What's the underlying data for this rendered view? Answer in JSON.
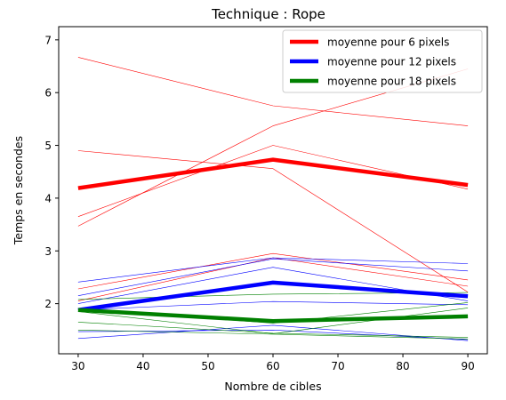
{
  "chart_data": {
    "type": "line",
    "title": "Technique : Rope",
    "xlabel": "Nombre de cibles",
    "ylabel": "Temps en secondes",
    "xlim": [
      27,
      93
    ],
    "ylim": [
      1.05,
      7.25
    ],
    "xticks": [
      30,
      40,
      50,
      60,
      70,
      80,
      90
    ],
    "yticks": [
      2,
      3,
      4,
      5,
      6,
      7
    ],
    "x": [
      30,
      60,
      90
    ],
    "grid": false,
    "legend_position": "top-right",
    "series": [
      {
        "name": "moyenne pour 6 pixels",
        "color": "#ff0000",
        "emphasis": "mean",
        "values": [
          4.19,
          4.73,
          4.25
        ]
      },
      {
        "name": "moyenne pour 12 pixels",
        "color": "#0000ff",
        "emphasis": "mean",
        "values": [
          1.88,
          2.4,
          2.14
        ]
      },
      {
        "name": "moyenne pour 18 pixels",
        "color": "#008000",
        "emphasis": "mean",
        "values": [
          1.88,
          1.67,
          1.76
        ]
      },
      {
        "color": "#ff0000",
        "values": [
          6.67,
          5.75,
          5.37
        ]
      },
      {
        "color": "#ff0000",
        "values": [
          4.9,
          4.56,
          2.22
        ]
      },
      {
        "color": "#ff0000",
        "values": [
          3.65,
          5.0,
          4.17
        ]
      },
      {
        "color": "#ff0000",
        "values": [
          3.47,
          5.37,
          6.45
        ]
      },
      {
        "color": "#ff0000",
        "values": [
          2.28,
          2.95,
          2.45
        ]
      },
      {
        "color": "#ff0000",
        "values": [
          2.05,
          2.87,
          2.33
        ]
      },
      {
        "color": "#0000ff",
        "values": [
          2.41,
          2.87,
          2.76
        ]
      },
      {
        "color": "#0000ff",
        "values": [
          2.15,
          2.85,
          2.62
        ]
      },
      {
        "color": "#0000ff",
        "values": [
          2.0,
          2.69,
          2.05
        ]
      },
      {
        "color": "#0000ff",
        "values": [
          1.88,
          2.04,
          1.98
        ]
      },
      {
        "color": "#0000ff",
        "values": [
          1.47,
          1.5,
          1.32
        ]
      },
      {
        "color": "#0000ff",
        "values": [
          1.34,
          1.59,
          1.3
        ]
      },
      {
        "color": "#008000",
        "values": [
          2.08,
          2.18,
          2.21
        ]
      },
      {
        "color": "#008000",
        "values": [
          1.9,
          1.63,
          2.02
        ]
      },
      {
        "color": "#008000",
        "values": [
          1.85,
          1.43,
          1.92
        ]
      },
      {
        "color": "#008000",
        "values": [
          1.65,
          1.44,
          1.36
        ]
      },
      {
        "color": "#008000",
        "values": [
          1.5,
          1.42,
          1.33
        ]
      }
    ]
  }
}
